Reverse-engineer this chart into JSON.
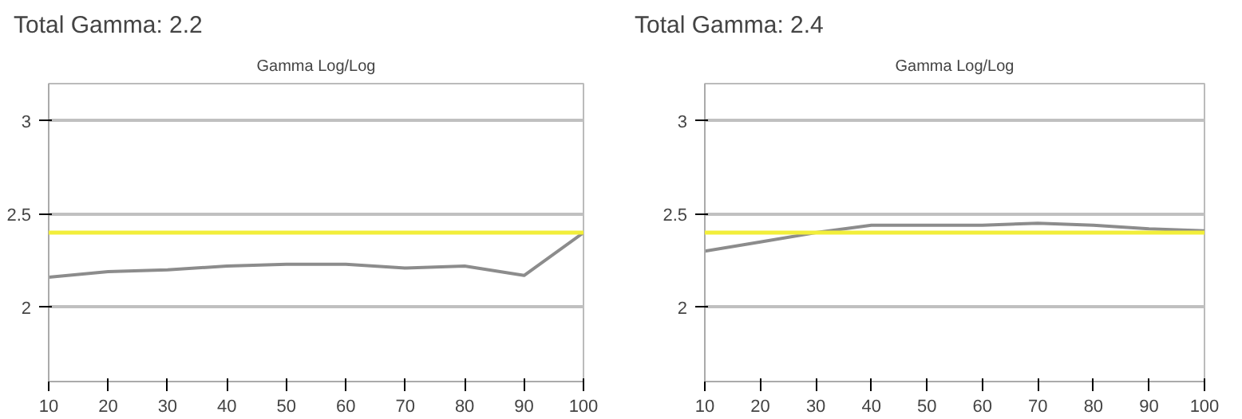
{
  "chart_data": [
    {
      "type": "line",
      "title": "Total Gamma: 2.2",
      "subtitle": "Gamma Log/Log",
      "x": [
        10,
        20,
        30,
        40,
        50,
        60,
        70,
        80,
        90,
        100
      ],
      "series": [
        {
          "color": "#8c8c8c",
          "values": [
            2.16,
            2.19,
            2.2,
            2.22,
            2.23,
            2.23,
            2.21,
            2.22,
            2.17,
            2.4
          ]
        }
      ],
      "xlim": [
        10,
        100
      ],
      "xticks": [
        10,
        20,
        30,
        40,
        50,
        60,
        70,
        80,
        90,
        100
      ],
      "ylim": [
        1.6,
        3.2
      ],
      "yticks": [
        2,
        2.5,
        3
      ],
      "grid": "y",
      "ref_lines": [
        {
          "axis": "y",
          "value": 2.4,
          "color": "#f2ee3a"
        }
      ]
    },
    {
      "type": "line",
      "title": "Total Gamma: 2.4",
      "subtitle": "Gamma Log/Log",
      "x": [
        10,
        20,
        30,
        40,
        50,
        60,
        70,
        80,
        90,
        100
      ],
      "series": [
        {
          "color": "#8c8c8c",
          "values": [
            2.3,
            2.35,
            2.4,
            2.44,
            2.44,
            2.44,
            2.45,
            2.44,
            2.42,
            2.41
          ]
        }
      ],
      "xlim": [
        10,
        100
      ],
      "xticks": [
        10,
        20,
        30,
        40,
        50,
        60,
        70,
        80,
        90,
        100
      ],
      "ylim": [
        1.6,
        3.2
      ],
      "yticks": [
        2,
        2.5,
        3
      ],
      "grid": "y",
      "ref_lines": [
        {
          "axis": "y",
          "value": 2.4,
          "color": "#f2ee3a"
        }
      ]
    }
  ]
}
